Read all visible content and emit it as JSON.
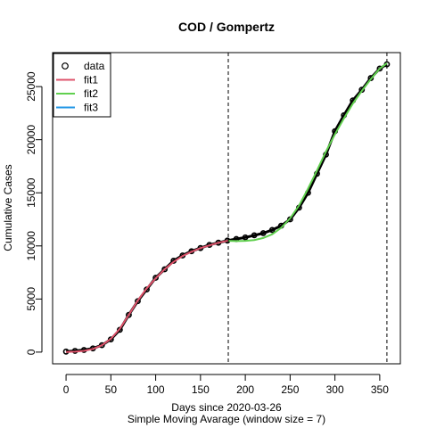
{
  "chart_data": {
    "type": "line",
    "title": "COD / Gompertz",
    "xlabel": "Days since 2020-03-26",
    "xlabel2": "Simple Moving Avarage (window size = 7)",
    "ylabel": "Cumulative Cases",
    "xlim": [
      -15,
      373
    ],
    "ylim": [
      -1100,
      28200
    ],
    "xticks": [
      0,
      50,
      100,
      150,
      200,
      250,
      300,
      350
    ],
    "yticks": [
      0,
      5000,
      10000,
      15000,
      20000,
      25000
    ],
    "vlines": [
      181,
      358
    ],
    "legend_position": "top-left",
    "colors": {
      "data": "#000000",
      "fit1": "#DF536B",
      "fit2": "#61D04F",
      "fit3": "#2297E6"
    },
    "series": [
      {
        "name": "data",
        "style": "points",
        "x": [
          0,
          10,
          20,
          30,
          40,
          50,
          60,
          70,
          80,
          90,
          100,
          110,
          120,
          130,
          140,
          150,
          160,
          170,
          180,
          190,
          200,
          210,
          220,
          230,
          240,
          250,
          260,
          270,
          280,
          290,
          300,
          310,
          320,
          330,
          340,
          350,
          358
        ],
        "y": [
          50,
          120,
          200,
          350,
          650,
          1200,
          2100,
          3500,
          4800,
          5900,
          7000,
          7800,
          8600,
          9100,
          9500,
          9800,
          10100,
          10300,
          10500,
          10650,
          10800,
          11000,
          11200,
          11500,
          11900,
          12500,
          13600,
          15000,
          16800,
          18600,
          20800,
          22300,
          23700,
          24700,
          25800,
          26700,
          27100
        ]
      },
      {
        "name": "fit1",
        "style": "line",
        "x": [
          0,
          10,
          20,
          30,
          40,
          50,
          60,
          70,
          80,
          90,
          100,
          110,
          120,
          130,
          140,
          150,
          160,
          170,
          181
        ],
        "y": [
          20,
          40,
          120,
          300,
          650,
          1250,
          2200,
          3500,
          4850,
          6000,
          6950,
          7800,
          8500,
          9050,
          9450,
          9800,
          10050,
          10300,
          10500
        ]
      },
      {
        "name": "fit2",
        "style": "line",
        "x": [
          181,
          190,
          200,
          210,
          220,
          230,
          240,
          250,
          260,
          270,
          280,
          290,
          300,
          310,
          320,
          330,
          340,
          350,
          358
        ],
        "y": [
          10480,
          10450,
          10480,
          10550,
          10750,
          11100,
          11700,
          12600,
          13800,
          15400,
          17100,
          18900,
          20500,
          22000,
          23400,
          24600,
          25700,
          26700,
          27200
        ]
      },
      {
        "name": "fit3",
        "style": "line",
        "x": [],
        "y": []
      }
    ]
  }
}
